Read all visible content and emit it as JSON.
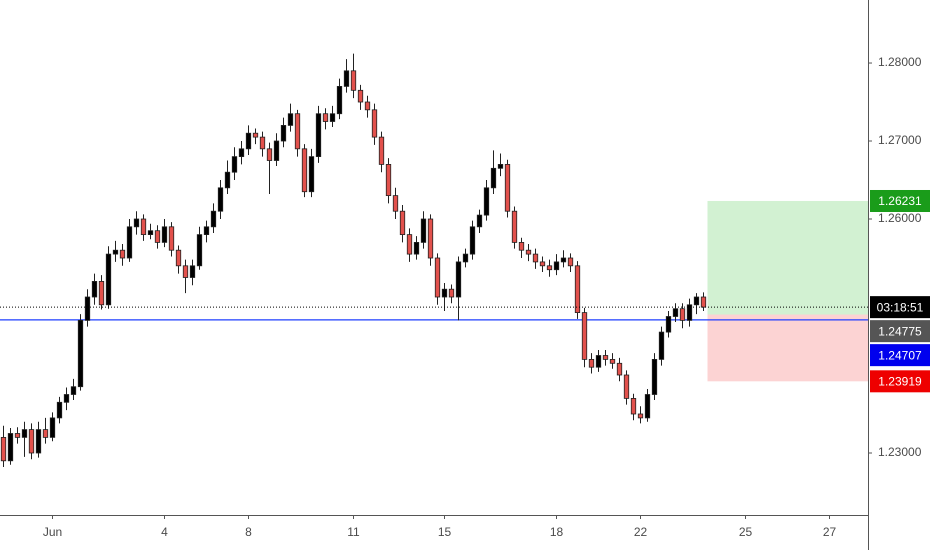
{
  "chart_data": {
    "type": "candlestick",
    "up_color": "#000000",
    "down_color": "#e2514c",
    "xlim": [
      -0.5,
      123.5
    ],
    "xticks": [
      {
        "value": 7,
        "label": "Jun"
      },
      {
        "value": 23,
        "label": "4"
      },
      {
        "value": 35,
        "label": "8"
      },
      {
        "value": 50,
        "label": "11"
      },
      {
        "value": 63,
        "label": "15"
      },
      {
        "value": 79,
        "label": "18"
      },
      {
        "value": 91,
        "label": "22"
      },
      {
        "value": 106,
        "label": "25"
      },
      {
        "value": 118,
        "label": "27"
      }
    ],
    "ylim": [
      1.22205,
      1.28808
    ],
    "yticks": [
      {
        "value": 1.23,
        "label": "1.23000"
      },
      {
        "value": 1.26,
        "label": "1.26000"
      },
      {
        "value": 1.27,
        "label": "1.27000"
      },
      {
        "value": 1.28,
        "label": "1.28000"
      }
    ],
    "hline": {
      "value": 1.24707,
      "color": "#1f3fff"
    },
    "position": {
      "take_profit": 1.26231,
      "entry": 1.24775,
      "stop": 1.23919
    },
    "countdown": "03:18:51",
    "candles": [
      [
        1.232,
        1.2335,
        1.2282,
        1.229
      ],
      [
        1.229,
        1.2332,
        1.2285,
        1.2325
      ],
      [
        1.2325,
        1.2333,
        1.2312,
        1.232
      ],
      [
        1.232,
        1.234,
        1.2295,
        1.233
      ],
      [
        1.233,
        1.2338,
        1.2292,
        1.23
      ],
      [
        1.23,
        1.234,
        1.2294,
        1.233
      ],
      [
        1.233,
        1.2345,
        1.2312,
        1.232
      ],
      [
        1.232,
        1.2352,
        1.2315,
        1.2345
      ],
      [
        1.2345,
        1.2372,
        1.2338,
        1.2365
      ],
      [
        1.2365,
        1.2384,
        1.2355,
        1.2375
      ],
      [
        1.2375,
        1.2395,
        1.2368,
        1.2385
      ],
      [
        1.2385,
        1.2478,
        1.238,
        1.247
      ],
      [
        1.247,
        1.251,
        1.2462,
        1.25
      ],
      [
        1.25,
        1.253,
        1.249,
        1.252
      ],
      [
        1.252,
        1.2528,
        1.2484,
        1.249
      ],
      [
        1.249,
        1.2565,
        1.2485,
        1.2555
      ],
      [
        1.2555,
        1.2572,
        1.2545,
        1.256
      ],
      [
        1.256,
        1.2568,
        1.254,
        1.255
      ],
      [
        1.255,
        1.26,
        1.2545,
        1.259
      ],
      [
        1.259,
        1.261,
        1.258,
        1.26
      ],
      [
        1.26,
        1.2606,
        1.2572,
        1.258
      ],
      [
        1.258,
        1.2594,
        1.2574,
        1.2585
      ],
      [
        1.2585,
        1.2592,
        1.2562,
        1.257
      ],
      [
        1.257,
        1.26,
        1.2564,
        1.259
      ],
      [
        1.259,
        1.2596,
        1.2552,
        1.256
      ],
      [
        1.256,
        1.2566,
        1.253,
        1.254
      ],
      [
        1.254,
        1.2548,
        1.2505,
        1.2525
      ],
      [
        1.2525,
        1.2548,
        1.2515,
        1.254
      ],
      [
        1.254,
        1.259,
        1.2535,
        1.258
      ],
      [
        1.258,
        1.2598,
        1.257,
        1.259
      ],
      [
        1.259,
        1.262,
        1.2582,
        1.261
      ],
      [
        1.261,
        1.265,
        1.26,
        1.264
      ],
      [
        1.264,
        1.2675,
        1.2632,
        1.266
      ],
      [
        1.266,
        1.2692,
        1.265,
        1.268
      ],
      [
        1.268,
        1.27,
        1.267,
        1.269
      ],
      [
        1.269,
        1.272,
        1.2682,
        1.271
      ],
      [
        1.271,
        1.2716,
        1.2696,
        1.2705
      ],
      [
        1.2705,
        1.2712,
        1.268,
        1.269
      ],
      [
        1.269,
        1.2698,
        1.2632,
        1.2675
      ],
      [
        1.2675,
        1.271,
        1.2668,
        1.27
      ],
      [
        1.27,
        1.273,
        1.2692,
        1.272
      ],
      [
        1.272,
        1.2748,
        1.2712,
        1.2735
      ],
      [
        1.2735,
        1.274,
        1.268,
        1.269
      ],
      [
        1.269,
        1.2696,
        1.2628,
        1.2635
      ],
      [
        1.2635,
        1.269,
        1.2628,
        1.268
      ],
      [
        1.268,
        1.2745,
        1.2672,
        1.2735
      ],
      [
        1.2735,
        1.2742,
        1.2715,
        1.2725
      ],
      [
        1.2725,
        1.2745,
        1.2718,
        1.2735
      ],
      [
        1.2735,
        1.278,
        1.2728,
        1.277
      ],
      [
        1.277,
        1.2805,
        1.2762,
        1.279
      ],
      [
        1.279,
        1.2812,
        1.2755,
        1.2765
      ],
      [
        1.2765,
        1.2772,
        1.274,
        1.275
      ],
      [
        1.275,
        1.2758,
        1.273,
        1.274
      ],
      [
        1.274,
        1.2748,
        1.2695,
        1.2705
      ],
      [
        1.2705,
        1.2712,
        1.266,
        1.267
      ],
      [
        1.267,
        1.2678,
        1.262,
        1.263
      ],
      [
        1.263,
        1.264,
        1.26,
        1.261
      ],
      [
        1.261,
        1.2618,
        1.257,
        1.258
      ],
      [
        1.258,
        1.2588,
        1.2545,
        1.2555
      ],
      [
        1.2555,
        1.2578,
        1.2548,
        1.257
      ],
      [
        1.257,
        1.261,
        1.2562,
        1.26
      ],
      [
        1.26,
        1.2606,
        1.254,
        1.255
      ],
      [
        1.255,
        1.2556,
        1.249,
        1.25
      ],
      [
        1.25,
        1.2518,
        1.2482,
        1.251
      ],
      [
        1.251,
        1.2516,
        1.2492,
        1.25
      ],
      [
        1.25,
        1.2552,
        1.247,
        1.2545
      ],
      [
        1.2545,
        1.2562,
        1.2538,
        1.2555
      ],
      [
        1.2555,
        1.2598,
        1.2548,
        1.259
      ],
      [
        1.259,
        1.2612,
        1.2582,
        1.2605
      ],
      [
        1.2605,
        1.265,
        1.2598,
        1.264
      ],
      [
        1.264,
        1.2688,
        1.2632,
        1.2665
      ],
      [
        1.2665,
        1.2684,
        1.2655,
        1.267
      ],
      [
        1.267,
        1.2676,
        1.2602,
        1.261
      ],
      [
        1.261,
        1.2616,
        1.2562,
        1.257
      ],
      [
        1.257,
        1.2576,
        1.255,
        1.256
      ],
      [
        1.256,
        1.2568,
        1.2546,
        1.2555
      ],
      [
        1.2555,
        1.2562,
        1.2536,
        1.2545
      ],
      [
        1.2545,
        1.2552,
        1.2532,
        1.254
      ],
      [
        1.254,
        1.2548,
        1.2526,
        1.2535
      ],
      [
        1.2535,
        1.2555,
        1.2528,
        1.2545
      ],
      [
        1.2545,
        1.256,
        1.2538,
        1.255
      ],
      [
        1.255,
        1.2556,
        1.2532,
        1.254
      ],
      [
        1.254,
        1.2546,
        1.2472,
        1.248
      ],
      [
        1.248,
        1.2486,
        1.241,
        1.242
      ],
      [
        1.242,
        1.2428,
        1.2402,
        1.241
      ],
      [
        1.241,
        1.2432,
        1.2404,
        1.2425
      ],
      [
        1.2425,
        1.2432,
        1.2412,
        1.242
      ],
      [
        1.242,
        1.2428,
        1.2408,
        1.2415
      ],
      [
        1.2415,
        1.2422,
        1.2392,
        1.24
      ],
      [
        1.24,
        1.2406,
        1.2362,
        1.237
      ],
      [
        1.237,
        1.2376,
        1.2342,
        1.235
      ],
      [
        1.235,
        1.236,
        1.2338,
        1.2345
      ],
      [
        1.2345,
        1.2382,
        1.234,
        1.2375
      ],
      [
        1.2375,
        1.2428,
        1.2368,
        1.242
      ],
      [
        1.242,
        1.2462,
        1.2412,
        1.2455
      ],
      [
        1.2455,
        1.2482,
        1.2448,
        1.2475
      ],
      [
        1.2475,
        1.2492,
        1.2468,
        1.2485
      ],
      [
        1.2485,
        1.2492,
        1.246,
        1.247
      ],
      [
        1.247,
        1.2498,
        1.2462,
        1.249
      ],
      [
        1.249,
        1.2505,
        1.2478,
        1.25
      ],
      [
        1.25,
        1.2506,
        1.2482,
        1.2487
      ]
    ]
  }
}
